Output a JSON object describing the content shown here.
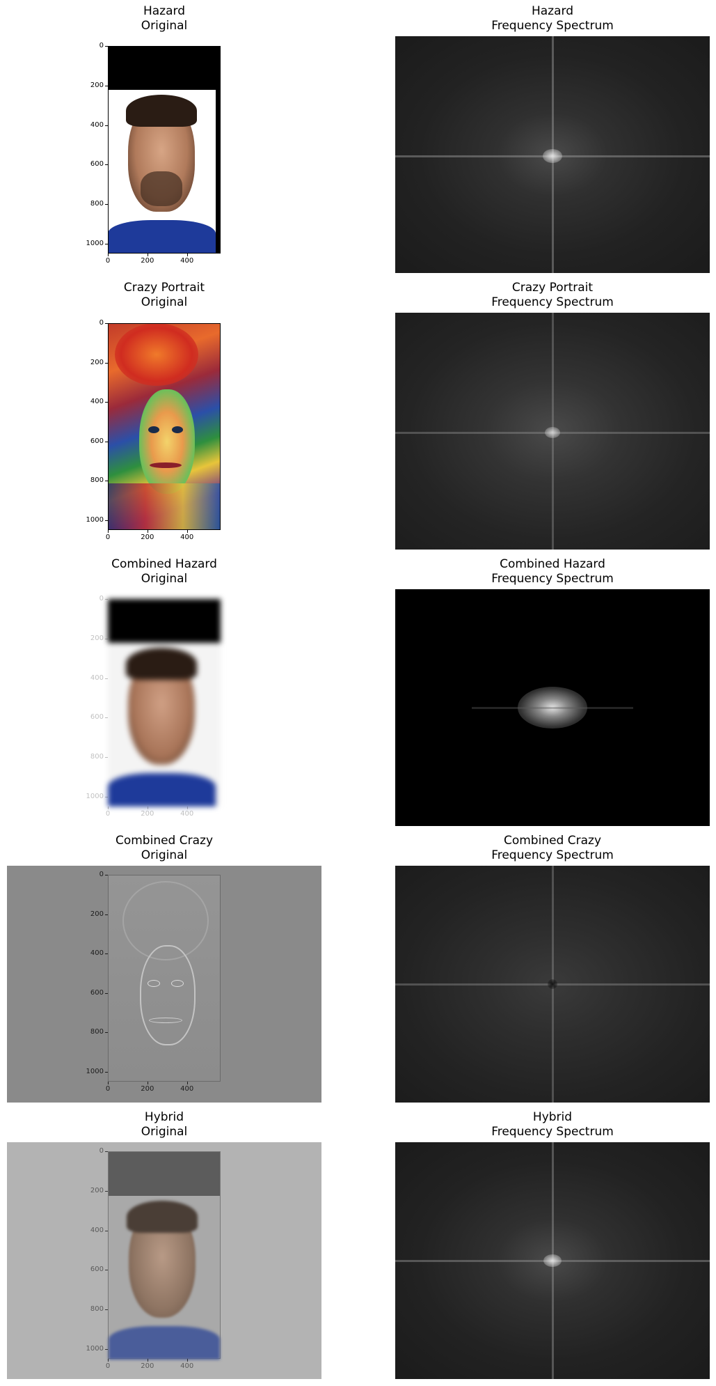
{
  "rows": [
    {
      "left_title": [
        "Hazard",
        "Original"
      ],
      "right_title": [
        "Hazard",
        "Frequency Spectrum"
      ]
    },
    {
      "left_title": [
        "Crazy Portrait",
        "Original"
      ],
      "right_title": [
        "Crazy Portrait",
        "Frequency Spectrum"
      ]
    },
    {
      "left_title": [
        "Combined Hazard",
        "Original"
      ],
      "right_title": [
        "Combined Hazard",
        "Frequency Spectrum"
      ]
    },
    {
      "left_title": [
        "Combined Crazy",
        "Original"
      ],
      "right_title": [
        "Combined Crazy",
        "Frequency Spectrum"
      ]
    },
    {
      "left_title": [
        "Hybrid",
        "Original"
      ],
      "right_title": [
        "Hybrid",
        "Frequency Spectrum"
      ]
    }
  ],
  "axis": {
    "y_ticks": [
      "0",
      "200",
      "400",
      "600",
      "800",
      "1000"
    ],
    "x_ticks": [
      "0",
      "200",
      "400"
    ]
  },
  "colors": {
    "spectrum_base": "#1e1e1e",
    "spectrum_dark": "#000000",
    "combined_crazy_bg": "#8a8a8a",
    "hybrid_bg": "#b3b3b3"
  }
}
